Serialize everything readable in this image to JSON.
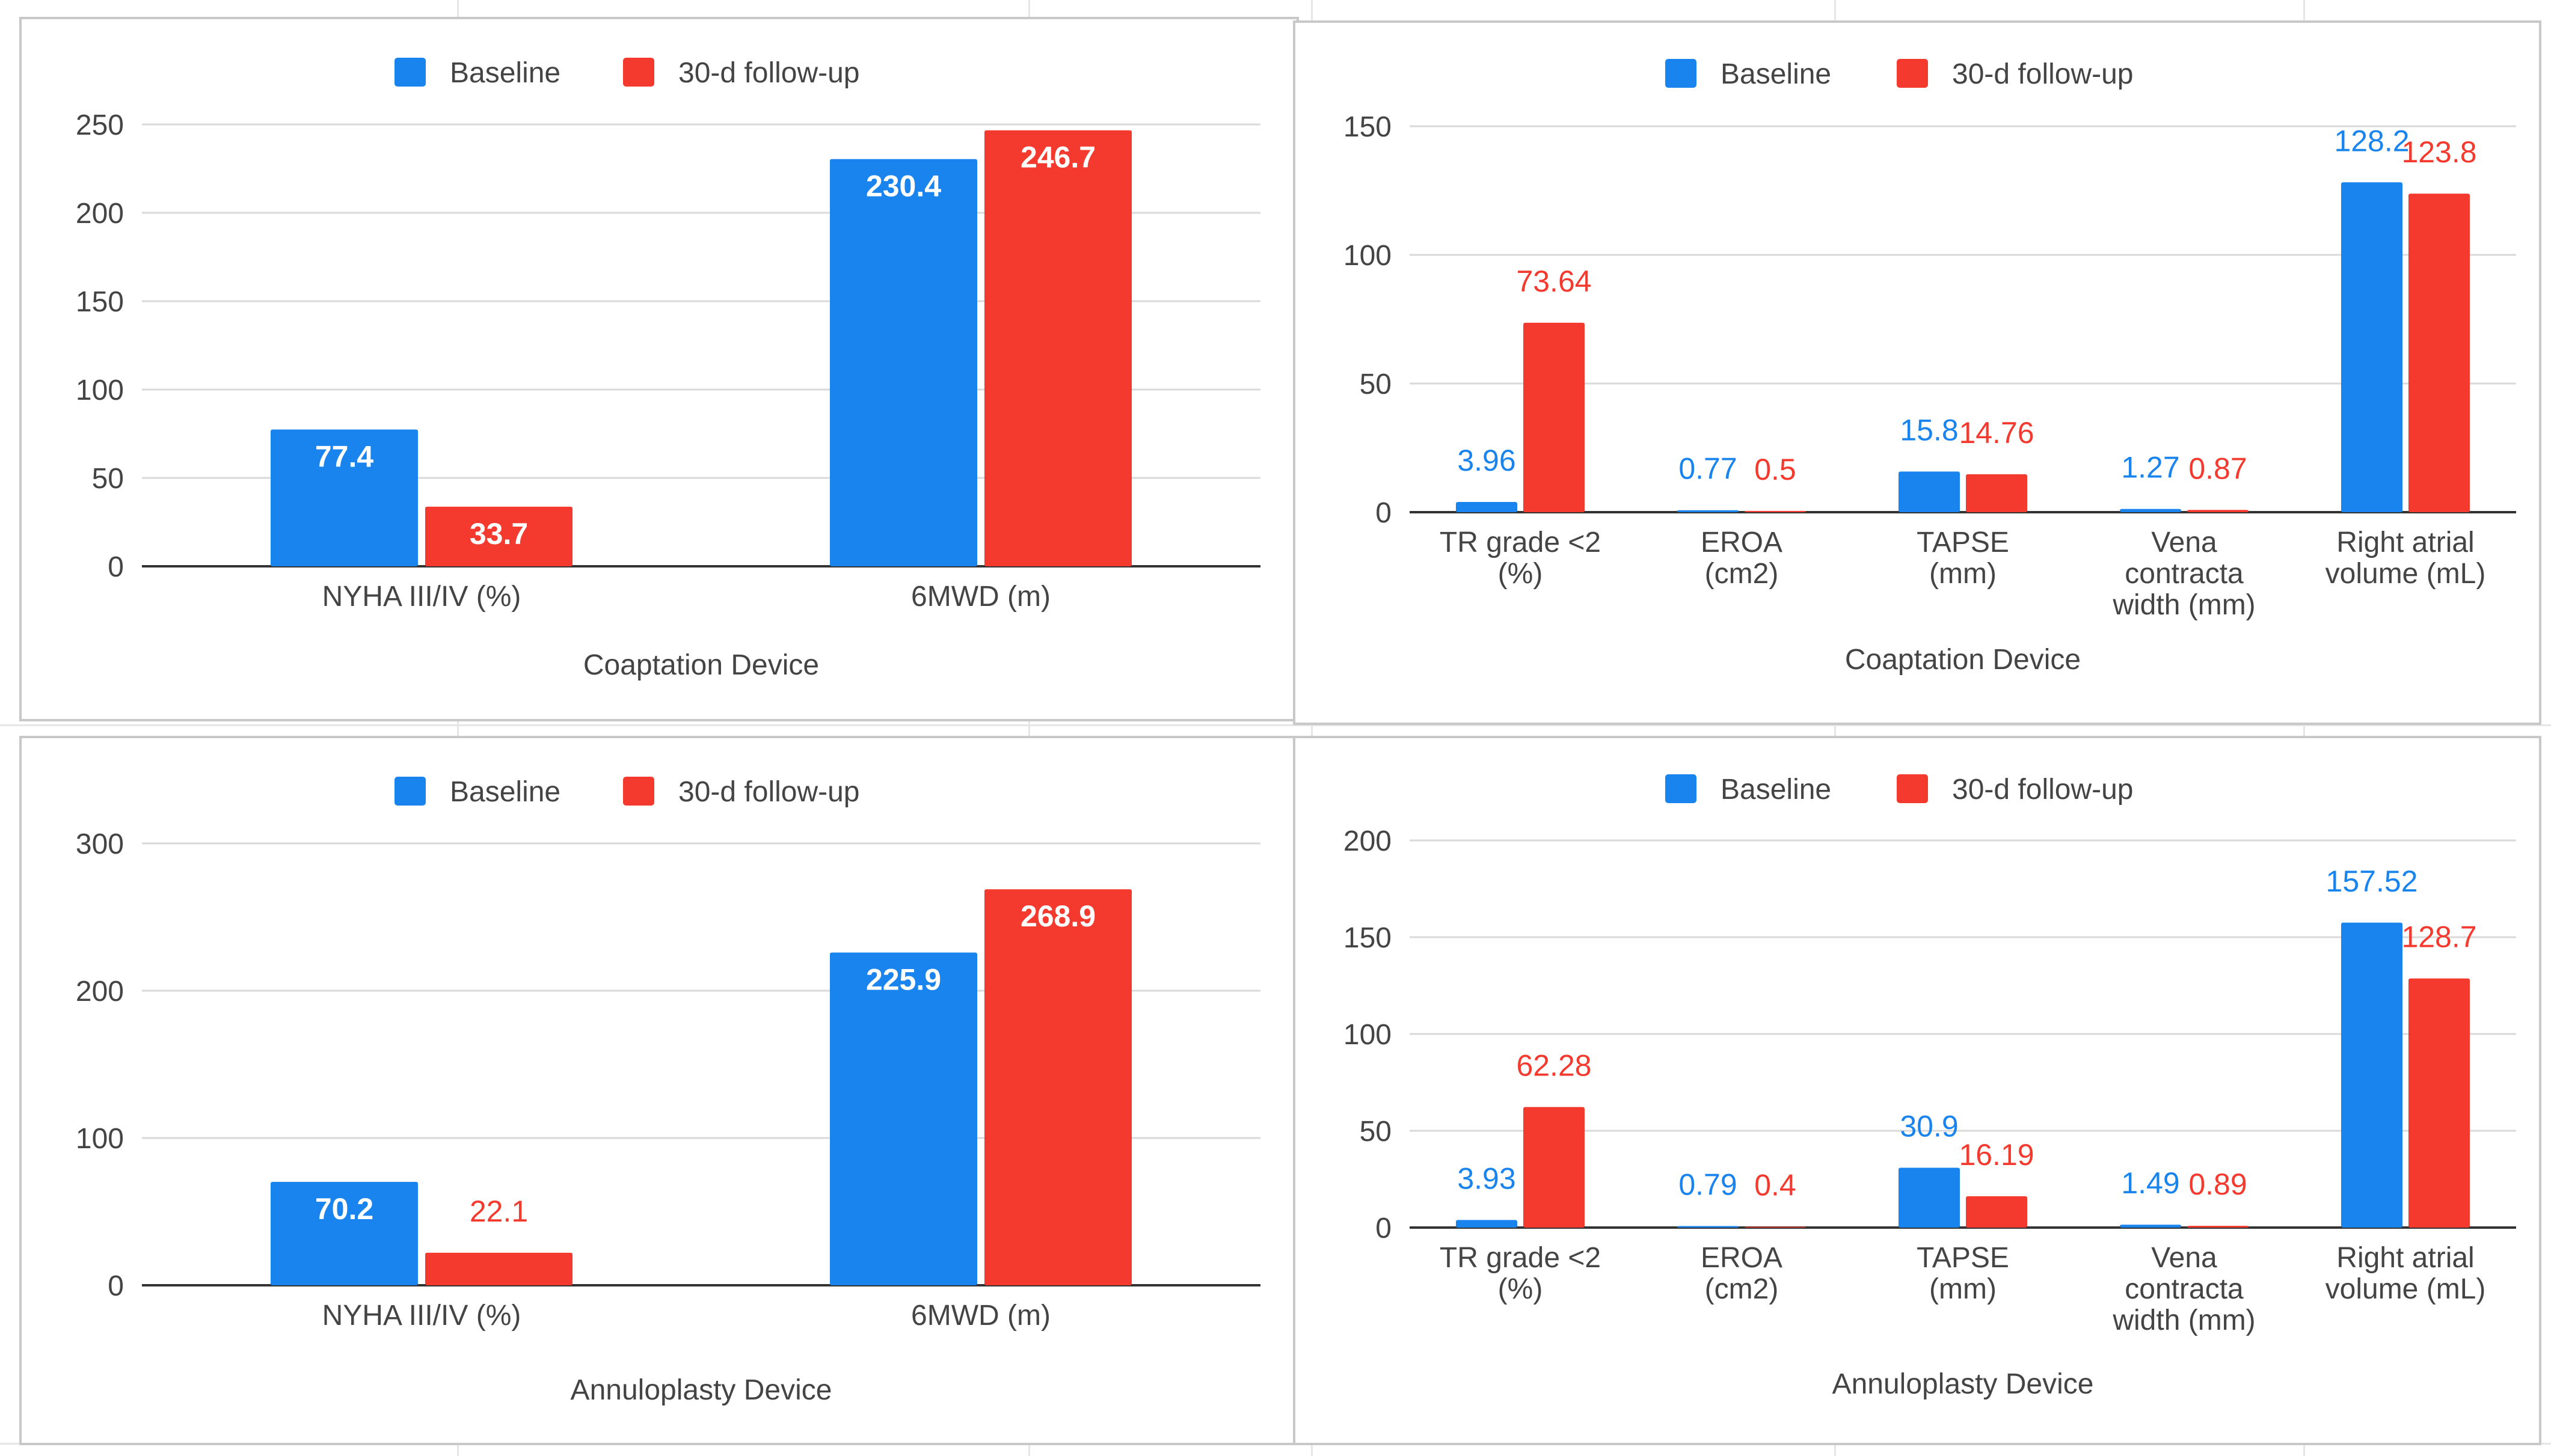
{
  "colors": {
    "baseline": "#1a84ee",
    "followup": "#f43a2e",
    "axis_text": "#444444",
    "grid": "#d9d9d9",
    "axis_line": "#333333"
  },
  "legend": {
    "baseline": "Baseline",
    "followup": "30-d follow-up"
  },
  "chart_data": [
    {
      "type": "bar",
      "title": "Coaptation Device",
      "categories": [
        [
          "NYHA III/IV (%)"
        ],
        [
          "6MWD (m)"
        ]
      ],
      "series": [
        {
          "name": "Baseline",
          "values": [
            77.4,
            230.4
          ],
          "labels": [
            "77.4",
            "230.4"
          ]
        },
        {
          "name": "30-d follow-up",
          "values": [
            33.7,
            246.7
          ],
          "labels": [
            "33.7",
            "246.7"
          ]
        }
      ],
      "ylim": [
        0,
        250
      ],
      "yticks": [
        0,
        50,
        100,
        150,
        200,
        250
      ],
      "xlabel": "Coaptation Device",
      "label_style": "inside"
    },
    {
      "type": "bar",
      "title": "Coaptation Device",
      "categories": [
        [
          "TR grade <2",
          "(%)"
        ],
        [
          "EROA",
          "(cm2)"
        ],
        [
          "TAPSE",
          "(mm)"
        ],
        [
          "Vena",
          "contracta",
          "width (mm)"
        ],
        [
          "Right atrial",
          "volume (mL)"
        ]
      ],
      "series": [
        {
          "name": "Baseline",
          "values": [
            3.96,
            0.77,
            15.8,
            1.27,
            128.2
          ],
          "labels": [
            "3.96",
            "0.77",
            "15.8",
            "1.27",
            "128.2"
          ]
        },
        {
          "name": "30-d follow-up",
          "values": [
            73.64,
            0.5,
            14.76,
            0.87,
            123.8
          ],
          "labels": [
            "73.64",
            "0.5",
            "14.76",
            "0.87",
            "123.8"
          ]
        }
      ],
      "ylim": [
        0,
        150
      ],
      "yticks": [
        0,
        50,
        100,
        150
      ],
      "xlabel": "Coaptation Device",
      "label_style": "above"
    },
    {
      "type": "bar",
      "title": "Annuloplasty Device",
      "categories": [
        [
          "NYHA III/IV (%)"
        ],
        [
          "6MWD (m)"
        ]
      ],
      "series": [
        {
          "name": "Baseline",
          "values": [
            70.2,
            225.9
          ],
          "labels": [
            "70.2",
            "225.9"
          ]
        },
        {
          "name": "30-d follow-up",
          "values": [
            22.1,
            268.9
          ],
          "labels": [
            "22.1",
            "268.9"
          ]
        }
      ],
      "ylim": [
        0,
        300
      ],
      "yticks": [
        0,
        100,
        200,
        300
      ],
      "xlabel": "Annuloplasty Device",
      "label_style": "inside"
    },
    {
      "type": "bar",
      "title": "Annuloplasty Device",
      "categories": [
        [
          "TR grade <2",
          "(%)"
        ],
        [
          "EROA",
          "(cm2)"
        ],
        [
          "TAPSE",
          "(mm)"
        ],
        [
          "Vena",
          "contracta",
          "width (mm)"
        ],
        [
          "Right atrial",
          "volume (mL)"
        ]
      ],
      "series": [
        {
          "name": "Baseline",
          "values": [
            3.93,
            0.79,
            30.9,
            1.49,
            157.52
          ],
          "labels": [
            "3.93",
            "0.79",
            "30.9",
            "1.49",
            "157.52"
          ]
        },
        {
          "name": "30-d follow-up",
          "values": [
            62.28,
            0.4,
            16.19,
            0.89,
            128.7
          ],
          "labels": [
            "62.28",
            "0.4",
            "16.19",
            "0.89",
            "128.7"
          ]
        }
      ],
      "ylim": [
        0,
        200
      ],
      "yticks": [
        0,
        50,
        100,
        150,
        200
      ],
      "xlabel": "Annuloplasty Device",
      "label_style": "above"
    }
  ]
}
